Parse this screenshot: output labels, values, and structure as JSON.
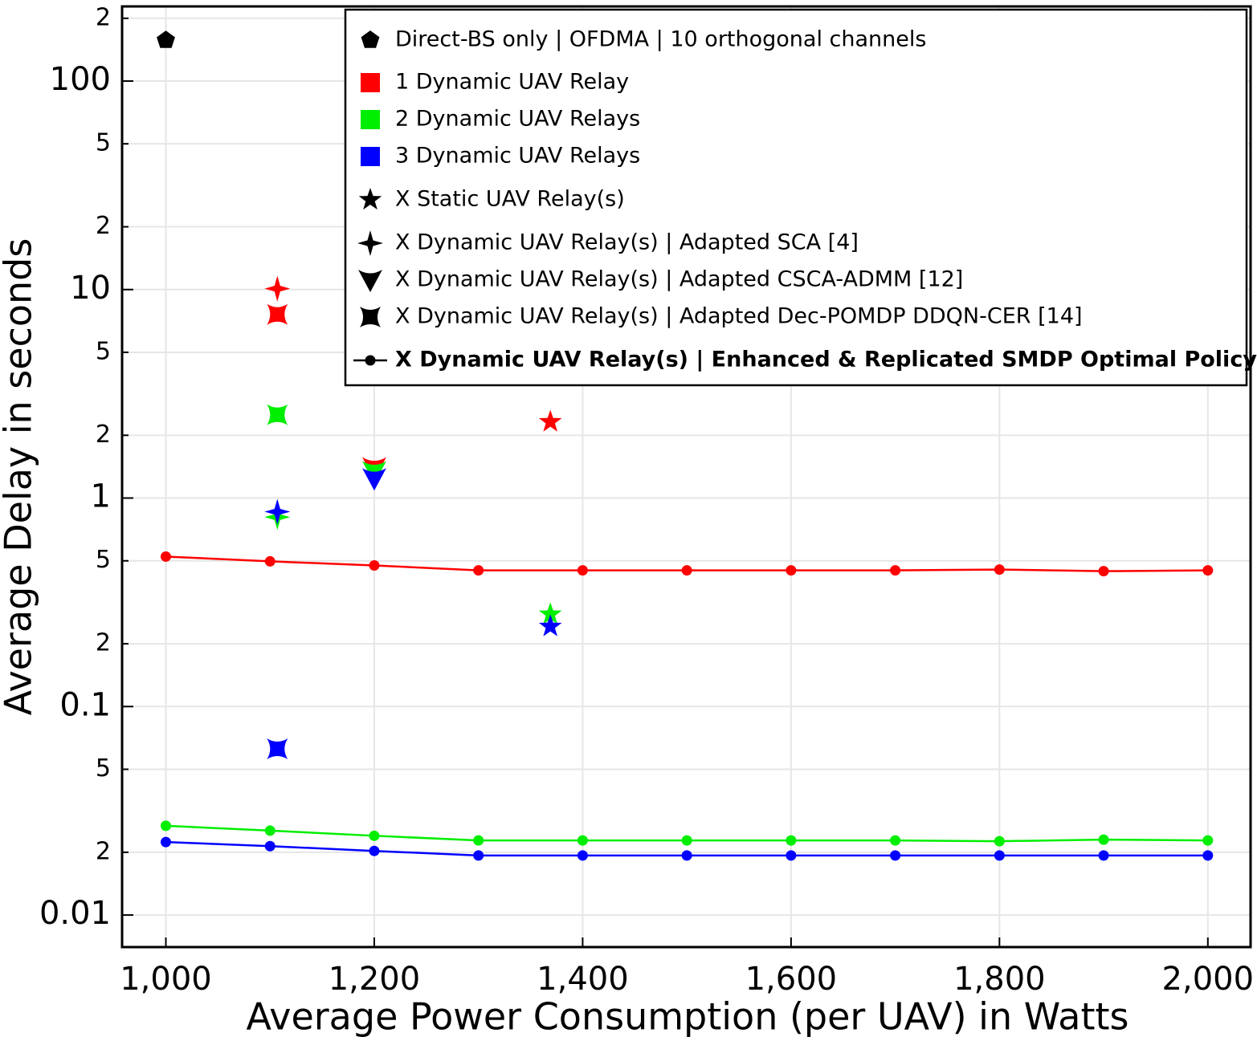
{
  "chart_data": {
    "type": "line",
    "xlabel": "Average Power Consumption (per UAV) in Watts",
    "ylabel": "Average Delay in seconds",
    "log_y": true,
    "grid": true,
    "legend_position": "upper right",
    "xlim": [
      958,
      2041
    ],
    "ylim": [
      0.00702,
      228
    ],
    "xticks": [
      {
        "value": 1000,
        "label": "1,000"
      },
      {
        "value": 1200,
        "label": "1,200"
      },
      {
        "value": 1400,
        "label": "1,400"
      },
      {
        "value": 1600,
        "label": "1,600"
      },
      {
        "value": 1800,
        "label": "1,800"
      },
      {
        "value": 2000,
        "label": "2,000"
      }
    ],
    "yticks": [
      0.01,
      {
        "value": 0.02,
        "label": "2"
      },
      {
        "value": 0.05,
        "label": "5"
      },
      0.1,
      {
        "value": 0.2,
        "label": "2"
      },
      {
        "value": 0.5,
        "label": "5"
      },
      1,
      {
        "value": 2,
        "label": "2"
      },
      {
        "value": 5,
        "label": "5"
      },
      10,
      {
        "value": 20,
        "label": "2"
      },
      {
        "value": 50,
        "label": "5"
      },
      100,
      {
        "value": 200,
        "label": "2"
      }
    ],
    "x": [
      1000,
      1100,
      1200,
      1300,
      1400,
      1500,
      1600,
      1700,
      1800,
      1900,
      2000
    ],
    "series": [
      {
        "color": "#ff0000",
        "values": [
          0.524,
          0.497,
          0.475,
          0.45,
          0.45,
          0.45,
          0.45,
          0.45,
          0.454,
          0.446,
          0.45
        ]
      },
      {
        "color": "#00ee00",
        "values": [
          0.0268,
          0.0254,
          0.024,
          0.0228,
          0.0228,
          0.0228,
          0.0228,
          0.0228,
          0.0226,
          0.023,
          0.0228
        ]
      },
      {
        "color": "#0000ff",
        "values": [
          0.0224,
          0.0214,
          0.0203,
          0.0193,
          0.0193,
          0.0193,
          0.0193,
          0.0193,
          0.0193,
          0.0193,
          0.0193
        ]
      }
    ],
    "points": [
      {
        "x": 1000,
        "y": 157,
        "symbol": "pentagon",
        "color": "#000000"
      },
      {
        "x": 1107,
        "y": 10.1,
        "symbol": "star4",
        "color": "#ff0000"
      },
      {
        "x": 1107,
        "y": 0.81,
        "symbol": "star4",
        "color": "#00ee00"
      },
      {
        "x": 1107,
        "y": 0.86,
        "symbol": "star4",
        "color": "#0000ff"
      },
      {
        "x": 1107,
        "y": 7.6,
        "symbol": "concave",
        "color": "#ff0000"
      },
      {
        "x": 1107,
        "y": 2.51,
        "symbol": "concave",
        "color": "#00ee00"
      },
      {
        "x": 1107,
        "y": 0.0627,
        "symbol": "concave",
        "color": "#0000ff"
      },
      {
        "x": 1200,
        "y": 1.4,
        "symbol": "vee",
        "color": "#ff0000"
      },
      {
        "x": 1200,
        "y": 1.34,
        "symbol": "vee",
        "color": "#00ee00"
      },
      {
        "x": 1200,
        "y": 1.24,
        "symbol": "vee",
        "color": "#0000ff"
      },
      {
        "x": 1369,
        "y": 2.32,
        "symbol": "star",
        "color": "#ff0000"
      },
      {
        "x": 1369,
        "y": 0.277,
        "symbol": "star",
        "color": "#00ee00"
      },
      {
        "x": 1369,
        "y": 0.242,
        "symbol": "star",
        "color": "#0000ff"
      }
    ],
    "legend": [
      {
        "label": "Direct-BS only | OFDMA | 10 orthogonal channels",
        "symbol": "pentagon",
        "color": "#000000"
      },
      {
        "label": "1 Dynamic UAV Relay",
        "symbol": "square",
        "color": "#ff0000"
      },
      {
        "label": "2 Dynamic UAV Relays",
        "symbol": "square",
        "color": "#00ee00"
      },
      {
        "label": "3 Dynamic UAV Relays",
        "symbol": "square",
        "color": "#0000ff"
      },
      {
        "label": "X Static UAV Relay(s)",
        "symbol": "star",
        "color": "#000000"
      },
      {
        "label": "X Dynamic UAV Relay(s) | Adapted SCA [4]",
        "symbol": "star4",
        "color": "#000000"
      },
      {
        "label": "X Dynamic UAV Relay(s) | Adapted CSCA-ADMM [12]",
        "symbol": "vee",
        "color": "#000000"
      },
      {
        "label": "X Dynamic UAV Relay(s) | Adapted Dec-POMDP DDQN-CER [14]",
        "symbol": "concave",
        "color": "#000000"
      },
      {
        "label": "X Dynamic UAV Relay(s) | Enhanced & Replicated SMDP Optimal Policy",
        "symbol": "line",
        "color": "#000000",
        "bold": true
      }
    ]
  }
}
